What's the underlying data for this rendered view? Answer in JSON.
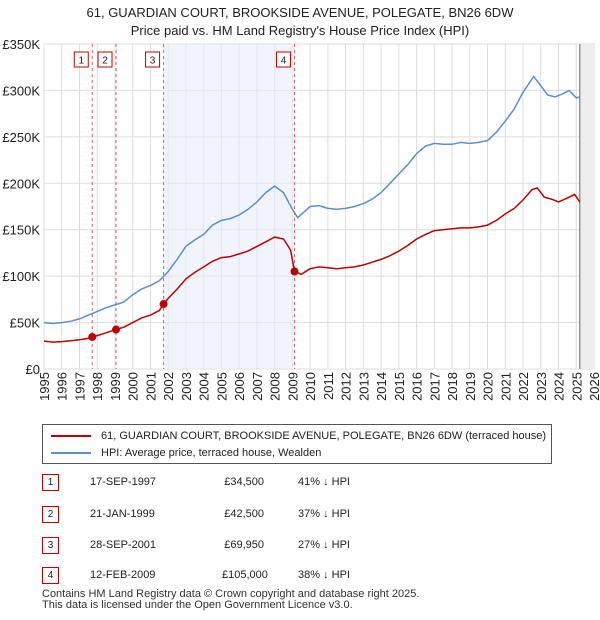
{
  "chart_data": {
    "type": "line",
    "title": "61, GUARDIAN COURT, BROOKSIDE AVENUE, POLEGATE, BN26 6DW",
    "subtitle": "Price paid vs. HM Land Registry's House Price Index (HPI)",
    "xlim": [
      1995,
      2026
    ],
    "ylim": [
      0,
      350000
    ],
    "x_ticks": [
      "1995",
      "1996",
      "1997",
      "1998",
      "1999",
      "2000",
      "2001",
      "2002",
      "2003",
      "2004",
      "2005",
      "2006",
      "2007",
      "2008",
      "2009",
      "2010",
      "2011",
      "2012",
      "2013",
      "2014",
      "2015",
      "2016",
      "2017",
      "2018",
      "2019",
      "2020",
      "2021",
      "2022",
      "2023",
      "2024",
      "2025",
      "2026"
    ],
    "y_ticks": [
      {
        "value": 0,
        "label": "£0"
      },
      {
        "value": 50000,
        "label": "£50K"
      },
      {
        "value": 100000,
        "label": "£100K"
      },
      {
        "value": 150000,
        "label": "£150K"
      },
      {
        "value": 200000,
        "label": "£200K"
      },
      {
        "value": 250000,
        "label": "£250K"
      },
      {
        "value": 300000,
        "label": "£300K"
      },
      {
        "value": 350000,
        "label": "£350K"
      }
    ],
    "grid": true,
    "future_region_start": 2025.2,
    "series": [
      {
        "name": "61, GUARDIAN COURT, BROOKSIDE AVENUE, POLEGATE, BN26 6DW (terraced house)",
        "color": "#c00000",
        "points": [
          [
            1995.0,
            30000
          ],
          [
            1995.5,
            29000
          ],
          [
            1996.0,
            29500
          ],
          [
            1996.5,
            30500
          ],
          [
            1997.0,
            31500
          ],
          [
            1997.5,
            33000
          ],
          [
            1997.72,
            34500
          ],
          [
            1998.0,
            36000
          ],
          [
            1998.5,
            39000
          ],
          [
            1999.06,
            42500
          ],
          [
            1999.5,
            45000
          ],
          [
            2000.0,
            50000
          ],
          [
            2000.5,
            55000
          ],
          [
            2001.0,
            58000
          ],
          [
            2001.5,
            63000
          ],
          [
            2001.74,
            69950
          ],
          [
            2002.0,
            76000
          ],
          [
            2002.5,
            86000
          ],
          [
            2003.0,
            97000
          ],
          [
            2003.5,
            104000
          ],
          [
            2004.0,
            110000
          ],
          [
            2004.5,
            116000
          ],
          [
            2005.0,
            120000
          ],
          [
            2005.5,
            121000
          ],
          [
            2006.0,
            124000
          ],
          [
            2006.5,
            127000
          ],
          [
            2007.0,
            132000
          ],
          [
            2007.5,
            137000
          ],
          [
            2008.0,
            142000
          ],
          [
            2008.5,
            140000
          ],
          [
            2008.9,
            128000
          ],
          [
            2009.12,
            105000
          ],
          [
            2009.5,
            102000
          ],
          [
            2010.0,
            108000
          ],
          [
            2010.5,
            110000
          ],
          [
            2011.0,
            109000
          ],
          [
            2011.5,
            108000
          ],
          [
            2012.0,
            109000
          ],
          [
            2012.5,
            110000
          ],
          [
            2013.0,
            112000
          ],
          [
            2013.5,
            115000
          ],
          [
            2014.0,
            118000
          ],
          [
            2014.5,
            122000
          ],
          [
            2015.0,
            127000
          ],
          [
            2015.5,
            133000
          ],
          [
            2016.0,
            140000
          ],
          [
            2016.5,
            145000
          ],
          [
            2017.0,
            149000
          ],
          [
            2017.5,
            150000
          ],
          [
            2018.0,
            151000
          ],
          [
            2018.5,
            152000
          ],
          [
            2019.0,
            152000
          ],
          [
            2019.5,
            153000
          ],
          [
            2020.0,
            155000
          ],
          [
            2020.5,
            160000
          ],
          [
            2021.0,
            167000
          ],
          [
            2021.5,
            173000
          ],
          [
            2022.0,
            182000
          ],
          [
            2022.5,
            193000
          ],
          [
            2022.8,
            195000
          ],
          [
            2023.2,
            185000
          ],
          [
            2023.6,
            183000
          ],
          [
            2024.0,
            180000
          ],
          [
            2024.5,
            184000
          ],
          [
            2024.9,
            188000
          ],
          [
            2025.2,
            180000
          ]
        ]
      },
      {
        "name": "HPI: Average price, terraced house, Wealden",
        "color": "#5b8fd0",
        "points": [
          [
            1995.0,
            50000
          ],
          [
            1995.5,
            49000
          ],
          [
            1996.0,
            50000
          ],
          [
            1996.5,
            51500
          ],
          [
            1997.0,
            54000
          ],
          [
            1997.5,
            58000
          ],
          [
            1998.0,
            62000
          ],
          [
            1998.5,
            66000
          ],
          [
            1999.0,
            69000
          ],
          [
            1999.5,
            72000
          ],
          [
            2000.0,
            80000
          ],
          [
            2000.5,
            86000
          ],
          [
            2001.0,
            90000
          ],
          [
            2001.5,
            95000
          ],
          [
            2002.0,
            105000
          ],
          [
            2002.5,
            118000
          ],
          [
            2003.0,
            132000
          ],
          [
            2003.5,
            139000
          ],
          [
            2004.0,
            145000
          ],
          [
            2004.5,
            155000
          ],
          [
            2005.0,
            160000
          ],
          [
            2005.5,
            162000
          ],
          [
            2006.0,
            166000
          ],
          [
            2006.5,
            172000
          ],
          [
            2007.0,
            180000
          ],
          [
            2007.5,
            190000
          ],
          [
            2008.0,
            197000
          ],
          [
            2008.5,
            190000
          ],
          [
            2009.0,
            172000
          ],
          [
            2009.3,
            163000
          ],
          [
            2009.6,
            168000
          ],
          [
            2010.0,
            175000
          ],
          [
            2010.5,
            176000
          ],
          [
            2011.0,
            173000
          ],
          [
            2011.5,
            172000
          ],
          [
            2012.0,
            173000
          ],
          [
            2012.5,
            175000
          ],
          [
            2013.0,
            178000
          ],
          [
            2013.5,
            183000
          ],
          [
            2014.0,
            190000
          ],
          [
            2014.5,
            200000
          ],
          [
            2015.0,
            210000
          ],
          [
            2015.5,
            220000
          ],
          [
            2016.0,
            232000
          ],
          [
            2016.5,
            240000
          ],
          [
            2017.0,
            243000
          ],
          [
            2017.5,
            242000
          ],
          [
            2018.0,
            242000
          ],
          [
            2018.5,
            244000
          ],
          [
            2019.0,
            243000
          ],
          [
            2019.5,
            244000
          ],
          [
            2020.0,
            246000
          ],
          [
            2020.5,
            255000
          ],
          [
            2021.0,
            267000
          ],
          [
            2021.5,
            280000
          ],
          [
            2022.0,
            298000
          ],
          [
            2022.6,
            315000
          ],
          [
            2023.0,
            305000
          ],
          [
            2023.4,
            295000
          ],
          [
            2023.8,
            293000
          ],
          [
            2024.2,
            296000
          ],
          [
            2024.6,
            300000
          ],
          [
            2025.0,
            292000
          ],
          [
            2025.2,
            293000
          ]
        ]
      }
    ],
    "sales": [
      {
        "id": "1",
        "x": 1997.72,
        "price": 34500
      },
      {
        "id": "2",
        "x": 1999.06,
        "price": 42500
      },
      {
        "id": "3",
        "x": 2001.74,
        "price": 69950
      },
      {
        "id": "4",
        "x": 2009.12,
        "price": 105000
      }
    ]
  },
  "legend": {
    "property_label": "61, GUARDIAN COURT, BROOKSIDE AVENUE, POLEGATE, BN26 6DW (terraced house)",
    "hpi_label": "HPI: Average price, terraced house, Wealden",
    "property_color": "#c00000",
    "hpi_color": "#5b8fd0"
  },
  "sales_table": [
    {
      "id": "1",
      "date": "17-SEP-1997",
      "price": "£34,500",
      "hpi": "41% ↓ HPI"
    },
    {
      "id": "2",
      "date": "21-JAN-1999",
      "price": "£42,500",
      "hpi": "37% ↓ HPI"
    },
    {
      "id": "3",
      "date": "28-SEP-2001",
      "price": "£69,950",
      "hpi": "27% ↓ HPI"
    },
    {
      "id": "4",
      "date": "12-FEB-2009",
      "price": "£105,000",
      "hpi": "38% ↓ HPI"
    }
  ],
  "footer": {
    "line1": "Contains HM Land Registry data © Crown copyright and database right 2025.",
    "line2": "This data is licensed under the Open Government Licence v3.0."
  }
}
